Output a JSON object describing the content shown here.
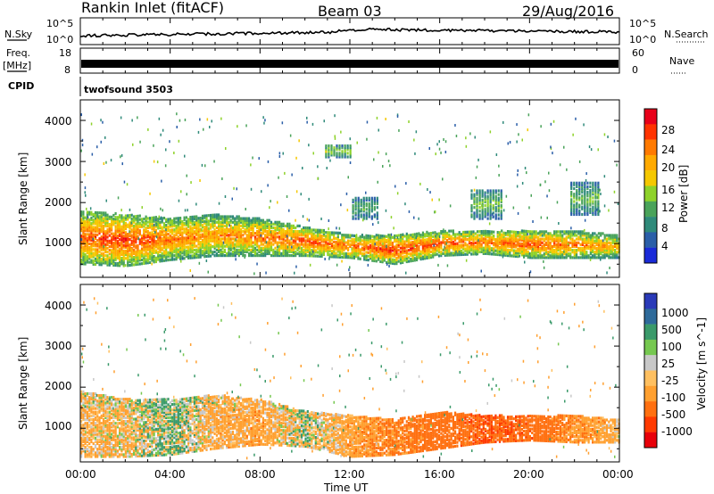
{
  "header": {
    "station": "Rankin Inlet (fitACF)",
    "beam": "Beam 03",
    "date": "29/Aug/2016"
  },
  "left_panel_labels": {
    "nsky": "N.Sky",
    "freq": "Freq.",
    "freq_unit": "[MHz]",
    "cpid": "CPID"
  },
  "right_panel_labels": {
    "nsearch": "N.Search",
    "nave": "Nave"
  },
  "cpid_text": "twofsound 3503",
  "noise_ticks_left": [
    "10^5",
    "10^0"
  ],
  "noise_ticks_right": [
    "10^5",
    "10^0"
  ],
  "freq_ticks_left": [
    "18",
    "8"
  ],
  "freq_ticks_right": [
    "60",
    "0"
  ],
  "x_axis_label": "Time UT",
  "x_ticks": [
    "00:00",
    "04:00",
    "08:00",
    "12:00",
    "16:00",
    "20:00",
    "00:00"
  ],
  "y_axis_label": "Slant Range [km]",
  "y_ticks": [
    "4000",
    "3000",
    "2000",
    "1000"
  ],
  "power_colorbar": {
    "label": "Power [dB]",
    "ticks": [
      "28",
      "24",
      "20",
      "16",
      "12",
      "8",
      "4"
    ],
    "colors": [
      "#e8001a",
      "#ff3300",
      "#ff7a00",
      "#ffaa00",
      "#f5c800",
      "#8ed22a",
      "#4aa35a",
      "#2f8a7a",
      "#2a5ea8",
      "#1a2ad8"
    ]
  },
  "velocity_colorbar": {
    "label": "Velocity [m s^-1]",
    "ticks": [
      "1000",
      "500",
      "100",
      "25",
      "-25",
      "-100",
      "-500",
      "-1000"
    ],
    "colors": [
      "#2a3ab8",
      "#2e6a9a",
      "#3a9a6a",
      "#76c850",
      "#c8c8c8",
      "#ffc060",
      "#ffa030",
      "#ff7010",
      "#ff3a00",
      "#e8000a"
    ]
  },
  "chart_data": [
    {
      "type": "heatmap",
      "title": "Power",
      "xlabel": "Time UT",
      "ylabel": "Slant Range [km]",
      "xlim": [
        "00:00",
        "24:00"
      ],
      "ylim": [
        180,
        4500
      ],
      "zlabel": "Power [dB]",
      "zlim": [
        0,
        30
      ],
      "echo_bands": [
        {
          "name": "main",
          "x": [
            0,
            2,
            4,
            6,
            8,
            10,
            12,
            14,
            16,
            18,
            20,
            22,
            24
          ],
          "range_low": [
            500,
            450,
            600,
            700,
            700,
            700,
            650,
            500,
            700,
            750,
            650,
            650,
            650
          ],
          "range_high": [
            1800,
            1700,
            1600,
            1700,
            1600,
            1400,
            1200,
            1200,
            1300,
            1300,
            1300,
            1300,
            1200
          ],
          "peak_db": [
            26,
            28,
            24,
            22,
            24,
            26,
            24,
            28,
            26,
            24,
            26,
            24,
            20
          ]
        },
        {
          "name": "upper",
          "x": [
            11.5,
            12.5,
            18,
            22.5
          ],
          "range_low": [
            3100,
            1600,
            1600,
            1700
          ],
          "range_high": [
            3400,
            2100,
            2300,
            2500
          ],
          "peak_db": [
            14,
            10,
            12,
            12
          ]
        }
      ]
    },
    {
      "type": "heatmap",
      "title": "Velocity",
      "xlabel": "Time UT",
      "ylabel": "Slant Range [km]",
      "xlim": [
        "00:00",
        "24:00"
      ],
      "ylim": [
        180,
        4500
      ],
      "zlabel": "Velocity [m s^-1]",
      "zlim": [
        -1000,
        1000
      ],
      "echo_bands": [
        {
          "name": "main",
          "x": [
            0,
            2,
            4,
            6,
            8,
            10,
            12,
            14,
            16,
            18,
            20,
            22,
            24
          ],
          "range_low": [
            300,
            300,
            350,
            500,
            600,
            550,
            300,
            350,
            500,
            650,
            700,
            650,
            650
          ],
          "range_high": [
            1900,
            1700,
            1700,
            1800,
            1700,
            1400,
            1300,
            1200,
            1400,
            1300,
            1300,
            1300,
            1200
          ],
          "typical_velocity": [
            -100,
            -80,
            60,
            -120,
            -150,
            20,
            -150,
            -300,
            -400,
            -600,
            -500,
            -200,
            -100
          ]
        }
      ]
    },
    {
      "type": "line",
      "title": "N.Sky",
      "ylim": [
        "10^0",
        "10^5"
      ]
    },
    {
      "type": "line",
      "title": "Freq. [MHz]",
      "ylim": [
        8,
        18
      ]
    }
  ]
}
